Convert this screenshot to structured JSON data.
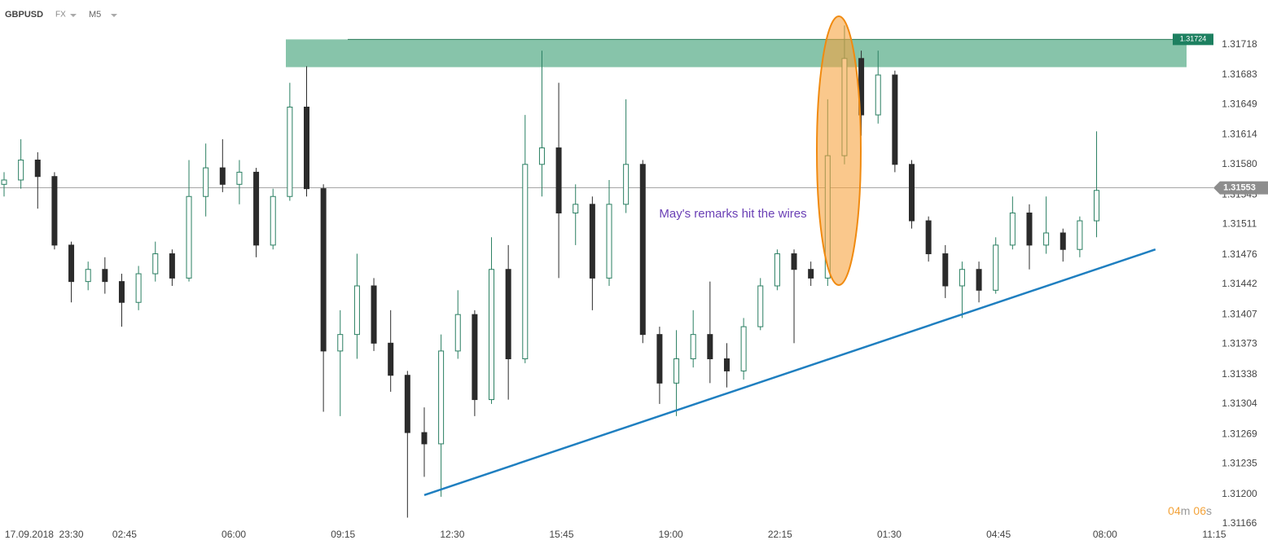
{
  "chart_data": {
    "type": "candlestick",
    "symbol": "GBPUSD",
    "market": "FX",
    "timeframe": "M5",
    "annotation": "May's remarks hit the wires",
    "countdown": {
      "minutes": "04",
      "minutes_unit": "m",
      "seconds": "06",
      "seconds_unit": "s"
    },
    "up_color": "#2a7f62",
    "down_color": "#2b2b2b",
    "x": [
      0,
      6,
      12,
      18,
      24,
      30,
      36,
      42,
      48,
      54,
      60,
      66,
      72,
      78,
      84,
      90,
      96,
      102,
      108,
      114,
      120,
      126,
      132,
      138,
      144,
      150,
      156,
      162,
      168,
      174,
      180,
      186,
      192,
      198,
      204,
      210,
      216,
      222,
      228,
      234,
      240,
      246,
      252,
      258,
      264,
      270,
      276,
      282,
      288,
      294,
      300,
      306,
      312,
      318,
      324,
      330,
      336,
      342,
      348,
      354,
      360,
      366,
      372,
      378,
      384,
      390
    ],
    "open": [
      1.31557,
      1.31562,
      1.31585,
      1.31566,
      1.31487,
      1.31445,
      1.31459,
      1.31445,
      1.31421,
      1.31454,
      1.31477,
      1.31449,
      1.31543,
      1.31576,
      1.31557,
      1.31571,
      1.31487,
      1.31543,
      1.31646,
      1.31552,
      1.31365,
      1.31384,
      1.3144,
      1.31374,
      1.31337,
      1.31271,
      1.31258,
      1.31365,
      1.31407,
      1.31309,
      1.31459,
      1.31356,
      1.3158,
      1.31599,
      1.31524,
      1.31534,
      1.31449,
      1.31534,
      1.3158,
      1.31384,
      1.31328,
      1.31356,
      1.31384,
      1.31356,
      1.31342,
      1.31393,
      1.3144,
      1.31477,
      1.31459,
      1.31449,
      1.3159,
      1.31702,
      1.31637,
      1.31683,
      1.3158,
      1.31515,
      1.31477,
      1.3144,
      1.31459,
      1.31435,
      1.31487,
      1.31524,
      1.31487,
      1.31501,
      1.31482,
      1.31515
    ],
    "high": [
      1.31571,
      1.31609,
      1.31594,
      1.31571,
      1.31491,
      1.31468,
      1.31473,
      1.31454,
      1.31463,
      1.31491,
      1.31482,
      1.31585,
      1.31604,
      1.31609,
      1.31585,
      1.31576,
      1.31552,
      1.31674,
      1.31693,
      1.31557,
      1.31412,
      1.31477,
      1.31449,
      1.31412,
      1.31342,
      1.313,
      1.31384,
      1.31435,
      1.31412,
      1.31496,
      1.31487,
      1.31637,
      1.31711,
      1.31674,
      1.31557,
      1.31543,
      1.31562,
      1.31655,
      1.31585,
      1.31393,
      1.31389,
      1.31412,
      1.31445,
      1.31374,
      1.31403,
      1.31449,
      1.31482,
      1.31482,
      1.31468,
      1.31655,
      1.3174,
      1.31711,
      1.31711,
      1.31688,
      1.31585,
      1.3152,
      1.31487,
      1.31468,
      1.31468,
      1.31496,
      1.31543,
      1.31534,
      1.31543,
      1.31506,
      1.3152,
      1.31618
    ],
    "low": [
      1.31543,
      1.31552,
      1.31529,
      1.31482,
      1.31421,
      1.31435,
      1.31431,
      1.31393,
      1.31412,
      1.31445,
      1.3144,
      1.31445,
      1.3152,
      1.31548,
      1.31534,
      1.31473,
      1.31482,
      1.31538,
      1.31543,
      1.31295,
      1.3129,
      1.31356,
      1.31365,
      1.31318,
      1.31173,
      1.3122,
      1.31197,
      1.31356,
      1.3129,
      1.31304,
      1.31309,
      1.31351,
      1.31543,
      1.31449,
      1.31487,
      1.31412,
      1.3144,
      1.31524,
      1.31374,
      1.31304,
      1.3129,
      1.31346,
      1.31328,
      1.31323,
      1.31332,
      1.31389,
      1.31435,
      1.31374,
      1.3144,
      1.3144,
      1.3158,
      1.31613,
      1.31627,
      1.31571,
      1.31506,
      1.31468,
      1.31426,
      1.31403,
      1.31421,
      1.31431,
      1.31482,
      1.31459,
      1.31477,
      1.31468,
      1.31473,
      1.31496
    ],
    "close": [
      1.31562,
      1.31585,
      1.31566,
      1.31487,
      1.31445,
      1.31459,
      1.31445,
      1.31421,
      1.31454,
      1.31477,
      1.31449,
      1.31543,
      1.31576,
      1.31557,
      1.31571,
      1.31487,
      1.31543,
      1.31646,
      1.31552,
      1.31365,
      1.31384,
      1.3144,
      1.31374,
      1.31337,
      1.31271,
      1.31258,
      1.31365,
      1.31407,
      1.31309,
      1.31459,
      1.31356,
      1.3158,
      1.31599,
      1.31524,
      1.31534,
      1.31449,
      1.31534,
      1.3158,
      1.31384,
      1.31328,
      1.31356,
      1.31384,
      1.31356,
      1.31342,
      1.31393,
      1.3144,
      1.31477,
      1.31459,
      1.31449,
      1.3159,
      1.31702,
      1.31637,
      1.31683,
      1.3158,
      1.31515,
      1.31477,
      1.3144,
      1.31459,
      1.31435,
      1.31487,
      1.31524,
      1.31487,
      1.31501,
      1.31482,
      1.31515,
      1.3155
    ],
    "xlim": [
      0,
      432
    ],
    "ylim": [
      1.3115,
      1.3176
    ],
    "xticks": [
      {
        "value": 9,
        "label": "17.09.2018"
      },
      {
        "value": 24,
        "label": "23:30"
      },
      {
        "value": 43,
        "label": "02:45"
      },
      {
        "value": 82,
        "label": "06:00"
      },
      {
        "value": 121,
        "label": "09:15"
      },
      {
        "value": 160,
        "label": "12:30"
      },
      {
        "value": 199,
        "label": "15:45"
      },
      {
        "value": 238,
        "label": "19:00"
      },
      {
        "value": 277,
        "label": "22:15"
      },
      {
        "value": 316,
        "label": "01:30"
      },
      {
        "value": 355,
        "label": "04:45"
      },
      {
        "value": 393,
        "label": "08:00"
      },
      {
        "value": 432,
        "label": "11:15"
      }
    ],
    "yticks": [
      1.31166,
      {
        "value": 1.312,
        "label": "1.31200"
      },
      1.31235,
      1.31269,
      1.31304,
      1.31338,
      1.31373,
      1.31407,
      1.31442,
      1.31476,
      1.31511,
      1.31545,
      {
        "value": 1.3158,
        "label": "1.31580"
      },
      1.31614,
      1.31649,
      1.31683,
      1.31718
    ],
    "current_price": 1.31553,
    "resistance": {
      "high": 1.31724,
      "low": 1.31692,
      "color": "#5fb08e"
    },
    "trendline": {
      "x": [
        150,
        411
      ],
      "y": [
        1.31199,
        1.31482
      ],
      "color": "#1f7fc0"
    }
  }
}
